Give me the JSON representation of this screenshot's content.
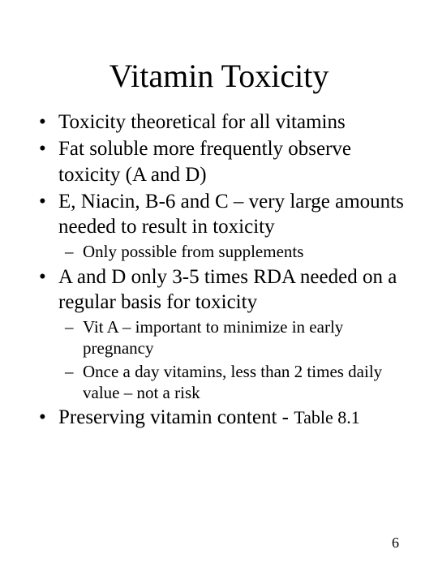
{
  "title": "Vitamin Toxicity",
  "bullets": {
    "b1": "Toxicity theoretical for all vitamins",
    "b2": "Fat soluble more frequently  observe toxicity (A and D)",
    "b3": "E, Niacin, B-6 and C – very large amounts  needed to result in toxicity",
    "b3_sub1": "Only possible from supplements",
    "b4": "A and D only 3-5 times RDA needed on a regular basis for toxicity",
    "b4_sub1": "Vit A – important to minimize in early pregnancy",
    "b4_sub2": "Once a day vitamins, less than 2 times daily value – not a risk",
    "b5_prefix": "Preserving vitamin content - ",
    "b5_suffix": "Table 8.1"
  },
  "page_number": "6",
  "colors": {
    "background": "#ffffff",
    "text": "#000000"
  }
}
